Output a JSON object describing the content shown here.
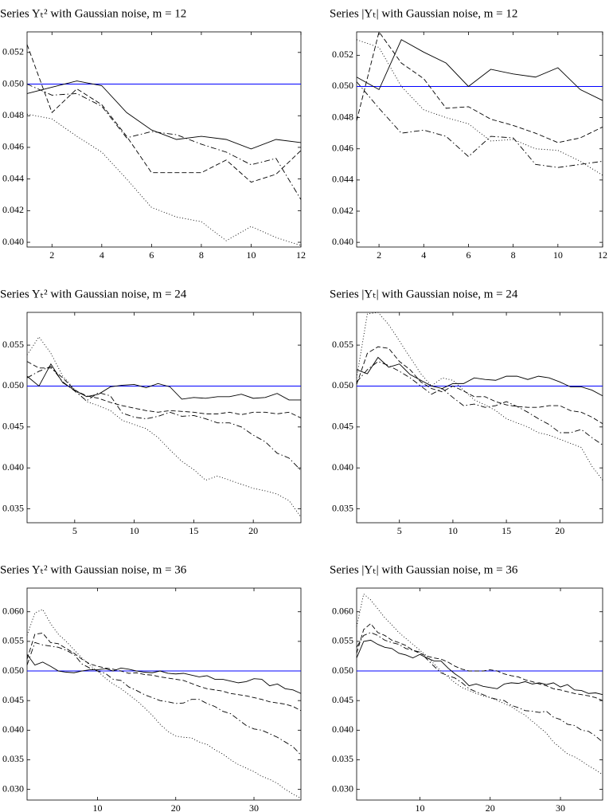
{
  "chart_data": [
    {
      "type": "line",
      "title": "Series Yₜ² with Gaussian noise, m = 12",
      "x": [
        1,
        2,
        3,
        4,
        5,
        6,
        7,
        8,
        9,
        10,
        11,
        12
      ],
      "xlim": [
        1,
        12
      ],
      "xticks": [
        2,
        4,
        6,
        8,
        10,
        12
      ],
      "ylim": [
        0.0397,
        0.0533
      ],
      "yticks": [
        {
          "value": 0.04,
          "label": "0.040"
        },
        0.042,
        0.044,
        0.046,
        0.048,
        {
          "value": 0.05,
          "label": "0.050"
        },
        0.052
      ],
      "grid": false,
      "hline": 0.05,
      "hline_color": "#0000ff",
      "series": [
        {
          "color": "#000000",
          "dash": "solid",
          "values": [
            0.0494,
            0.0498,
            0.0502,
            0.0499,
            0.0482,
            0.0471,
            0.0465,
            0.0467,
            0.0465,
            0.0459,
            0.0465,
            0.0463
          ]
        },
        {
          "color": "#000000",
          "dash": "dashed",
          "values": [
            0.0525,
            0.0482,
            0.0497,
            0.0487,
            0.0467,
            0.0444,
            0.0444,
            0.0444,
            0.0452,
            0.0438,
            0.0443,
            0.0458
          ]
        },
        {
          "color": "#000000",
          "dash": "dashdot",
          "values": [
            0.05,
            0.0493,
            0.0494,
            0.0486,
            0.0466,
            0.047,
            0.0468,
            0.0462,
            0.0457,
            0.0449,
            0.0453,
            0.0427
          ]
        },
        {
          "color": "#000000",
          "dash": "dotted",
          "values": [
            0.0481,
            0.0478,
            0.0467,
            0.0457,
            0.044,
            0.0422,
            0.0416,
            0.0413,
            0.0401,
            0.041,
            0.0403,
            0.0398
          ]
        }
      ]
    },
    {
      "type": "line",
      "title": "Series |Yₜ| with Gaussian noise, m = 12",
      "x": [
        1,
        2,
        3,
        4,
        5,
        6,
        7,
        8,
        9,
        10,
        11,
        12
      ],
      "xlim": [
        1,
        12
      ],
      "xticks": [
        2,
        4,
        6,
        8,
        10,
        12
      ],
      "ylim": [
        0.0397,
        0.0535
      ],
      "yticks": [
        {
          "value": 0.04,
          "label": "0.040"
        },
        0.042,
        0.044,
        0.046,
        0.048,
        {
          "value": 0.05,
          "label": "0.050"
        },
        0.052
      ],
      "grid": false,
      "hline": 0.05,
      "hline_color": "#0000ff",
      "series": [
        {
          "color": "#000000",
          "dash": "solid",
          "values": [
            0.0506,
            0.0498,
            0.053,
            0.0522,
            0.0515,
            0.05,
            0.0511,
            0.0508,
            0.0506,
            0.0512,
            0.0498,
            0.0491
          ]
        },
        {
          "color": "#000000",
          "dash": "dashed",
          "values": [
            0.0478,
            0.0535,
            0.0515,
            0.0505,
            0.0486,
            0.0487,
            0.0479,
            0.0475,
            0.047,
            0.0464,
            0.0467,
            0.0474
          ]
        },
        {
          "color": "#000000",
          "dash": "dashdot",
          "values": [
            0.0503,
            0.0486,
            0.047,
            0.0472,
            0.0468,
            0.0455,
            0.0468,
            0.0467,
            0.045,
            0.0448,
            0.045,
            0.0452
          ]
        },
        {
          "color": "#000000",
          "dash": "dotted",
          "values": [
            0.053,
            0.0525,
            0.05,
            0.0485,
            0.048,
            0.0476,
            0.0465,
            0.0466,
            0.046,
            0.0459,
            0.0452,
            0.0443
          ]
        }
      ]
    },
    {
      "type": "line",
      "title": "Series Yₜ² with Gaussian noise, m = 24",
      "x": [
        1,
        2,
        3,
        4,
        5,
        6,
        7,
        8,
        9,
        10,
        11,
        12,
        13,
        14,
        15,
        16,
        17,
        18,
        19,
        20,
        21,
        22,
        23,
        24
      ],
      "xlim": [
        1,
        24
      ],
      "xticks": [
        5,
        10,
        15,
        20
      ],
      "ylim": [
        0.0333,
        0.059
      ],
      "yticks": [
        0.035,
        {
          "value": 0.04,
          "label": "0.040"
        },
        0.045,
        {
          "value": 0.05,
          "label": "0.050"
        },
        0.055
      ],
      "grid": false,
      "hline": 0.05,
      "hline_color": "#0000ff",
      "series": [
        {
          "color": "#000000",
          "dash": "solid",
          "values": [
            0.0512,
            0.05,
            0.0527,
            0.0504,
            0.0495,
            0.0487,
            0.049,
            0.0499,
            0.0501,
            0.0502,
            0.0498,
            0.0503,
            0.0499,
            0.0484,
            0.0486,
            0.0485,
            0.0487,
            0.0487,
            0.049,
            0.0485,
            0.0486,
            0.0491,
            0.0483,
            0.0483
          ]
        },
        {
          "color": "#000000",
          "dash": "dashed",
          "values": [
            0.053,
            0.0522,
            0.0522,
            0.051,
            0.0495,
            0.0488,
            0.0485,
            0.048,
            0.0476,
            0.0473,
            0.047,
            0.0468,
            0.047,
            0.0469,
            0.0468,
            0.0466,
            0.0466,
            0.0468,
            0.0465,
            0.0468,
            0.0468,
            0.0466,
            0.0468,
            0.0461
          ]
        },
        {
          "color": "#000000",
          "dash": "dashdot",
          "values": [
            0.051,
            0.0518,
            0.0524,
            0.0505,
            0.0494,
            0.0482,
            0.0492,
            0.0488,
            0.0467,
            0.0462,
            0.046,
            0.0463,
            0.0468,
            0.0463,
            0.0464,
            0.046,
            0.0455,
            0.0455,
            0.045,
            0.044,
            0.0432,
            0.0418,
            0.0412,
            0.0397
          ]
        },
        {
          "color": "#000000",
          "dash": "dotted",
          "values": [
            0.0538,
            0.056,
            0.054,
            0.0512,
            0.0496,
            0.0481,
            0.0476,
            0.047,
            0.0458,
            0.0453,
            0.0448,
            0.0437,
            0.0422,
            0.0408,
            0.0398,
            0.0385,
            0.039,
            0.0385,
            0.038,
            0.0375,
            0.0372,
            0.0368,
            0.036,
            0.034
          ]
        }
      ]
    },
    {
      "type": "line",
      "title": "Series |Yₜ| with Gaussian noise, m = 24",
      "x": [
        1,
        2,
        3,
        4,
        5,
        6,
        7,
        8,
        9,
        10,
        11,
        12,
        13,
        14,
        15,
        16,
        17,
        18,
        19,
        20,
        21,
        22,
        23,
        24
      ],
      "xlim": [
        1,
        24
      ],
      "xticks": [
        5,
        10,
        15,
        20
      ],
      "ylim": [
        0.0333,
        0.059
      ],
      "yticks": [
        0.035,
        {
          "value": 0.04,
          "label": "0.040"
        },
        0.045,
        {
          "value": 0.05,
          "label": "0.050"
        },
        0.055
      ],
      "grid": false,
      "hline": 0.05,
      "hline_color": "#0000ff",
      "series": [
        {
          "color": "#000000",
          "dash": "solid",
          "values": [
            0.052,
            0.0515,
            0.0535,
            0.0523,
            0.0527,
            0.0514,
            0.0507,
            0.05,
            0.0497,
            0.0503,
            0.0503,
            0.051,
            0.0508,
            0.0507,
            0.0512,
            0.0512,
            0.0508,
            0.0512,
            0.051,
            0.0505,
            0.0499,
            0.0499,
            0.0495,
            0.0488
          ]
        },
        {
          "color": "#000000",
          "dash": "dashed",
          "values": [
            0.0502,
            0.054,
            0.0548,
            0.0546,
            0.053,
            0.052,
            0.0505,
            0.0497,
            0.0493,
            0.05,
            0.0494,
            0.0487,
            0.0487,
            0.0481,
            0.0477,
            0.0475,
            0.0474,
            0.0474,
            0.0476,
            0.0476,
            0.047,
            0.0468,
            0.0462,
            0.0454
          ]
        },
        {
          "color": "#000000",
          "dash": "dashdot",
          "values": [
            0.0505,
            0.052,
            0.053,
            0.0525,
            0.0518,
            0.051,
            0.05,
            0.049,
            0.0497,
            0.0486,
            0.0476,
            0.0478,
            0.0474,
            0.0476,
            0.0481,
            0.0475,
            0.0468,
            0.046,
            0.0453,
            0.0443,
            0.0443,
            0.0447,
            0.0437,
            0.0428
          ]
        },
        {
          "color": "#000000",
          "dash": "dotted",
          "values": [
            0.051,
            0.0588,
            0.059,
            0.0575,
            0.0555,
            0.0535,
            0.0515,
            0.05,
            0.051,
            0.0507,
            0.0495,
            0.0483,
            0.0477,
            0.047,
            0.046,
            0.0455,
            0.045,
            0.0443,
            0.044,
            0.0435,
            0.043,
            0.0425,
            0.0402,
            0.0385
          ]
        }
      ]
    },
    {
      "type": "line",
      "title": "Series Yₜ² with Gaussian noise, m = 36",
      "x": [
        1,
        2,
        3,
        4,
        5,
        6,
        7,
        8,
        9,
        10,
        11,
        12,
        13,
        14,
        15,
        16,
        17,
        18,
        19,
        20,
        21,
        22,
        23,
        24,
        25,
        26,
        27,
        28,
        29,
        30,
        31,
        32,
        33,
        34,
        35,
        36
      ],
      "xlim": [
        1,
        36
      ],
      "xticks": [
        10,
        20,
        30
      ],
      "ylim": [
        0.0282,
        0.064
      ],
      "yticks": [
        {
          "value": 0.03,
          "label": "0.030"
        },
        0.035,
        {
          "value": 0.04,
          "label": "0.040"
        },
        0.045,
        {
          "value": 0.05,
          "label": "0.050"
        },
        0.055,
        {
          "value": 0.06,
          "label": "0.060"
        }
      ],
      "grid": false,
      "hline": 0.05,
      "hline_color": "#0000ff",
      "series": [
        {
          "color": "#000000",
          "dash": "solid",
          "values": [
            0.0528,
            0.051,
            0.0515,
            0.0508,
            0.05,
            0.0498,
            0.0497,
            0.05,
            0.0502,
            0.0502,
            0.0504,
            0.05,
            0.0505,
            0.0503,
            0.05,
            0.0498,
            0.0497,
            0.05,
            0.0496,
            0.0495,
            0.0496,
            0.0493,
            0.049,
            0.0492,
            0.0486,
            0.0486,
            0.0483,
            0.048,
            0.0482,
            0.0487,
            0.0486,
            0.0475,
            0.0478,
            0.047,
            0.0468,
            0.0462
          ]
        },
        {
          "color": "#000000",
          "dash": "dashed",
          "values": [
            0.052,
            0.0562,
            0.0564,
            0.0548,
            0.0546,
            0.0538,
            0.053,
            0.052,
            0.0512,
            0.0508,
            0.0505,
            0.0503,
            0.05,
            0.0496,
            0.0497,
            0.0494,
            0.0493,
            0.049,
            0.0488,
            0.0486,
            0.0484,
            0.0479,
            0.0474,
            0.047,
            0.0468,
            0.0466,
            0.0462,
            0.046,
            0.0458,
            0.0455,
            0.0452,
            0.0448,
            0.0446,
            0.0444,
            0.044,
            0.0433
          ]
        },
        {
          "color": "#000000",
          "dash": "dashdot",
          "values": [
            0.051,
            0.0548,
            0.0544,
            0.0542,
            0.054,
            0.0535,
            0.0528,
            0.0512,
            0.0505,
            0.05,
            0.0496,
            0.0486,
            0.0484,
            0.0473,
            0.0467,
            0.046,
            0.0455,
            0.045,
            0.0448,
            0.0445,
            0.0446,
            0.0452,
            0.0452,
            0.0445,
            0.044,
            0.0432,
            0.0428,
            0.0418,
            0.0408,
            0.0402,
            0.04,
            0.0394,
            0.0388,
            0.038,
            0.0372,
            0.0358
          ]
        },
        {
          "color": "#000000",
          "dash": "dotted",
          "values": [
            0.056,
            0.0598,
            0.0604,
            0.058,
            0.0562,
            0.055,
            0.0536,
            0.0522,
            0.051,
            0.05,
            0.0488,
            0.0478,
            0.047,
            0.046,
            0.045,
            0.0438,
            0.0425,
            0.041,
            0.0398,
            0.039,
            0.0388,
            0.0387,
            0.038,
            0.0376,
            0.0367,
            0.036,
            0.035,
            0.0342,
            0.0336,
            0.033,
            0.0322,
            0.0317,
            0.031,
            0.03,
            0.0292,
            0.0285
          ]
        }
      ]
    },
    {
      "type": "line",
      "title": "Series |Yₜ| with Gaussian noise, m = 36",
      "x": [
        1,
        2,
        3,
        4,
        5,
        6,
        7,
        8,
        9,
        10,
        11,
        12,
        13,
        14,
        15,
        16,
        17,
        18,
        19,
        20,
        21,
        22,
        23,
        24,
        25,
        26,
        27,
        28,
        29,
        30,
        31,
        32,
        33,
        34,
        35,
        36
      ],
      "xlim": [
        1,
        36
      ],
      "xticks": [
        10,
        20,
        30
      ],
      "ylim": [
        0.0282,
        0.064
      ],
      "yticks": [
        {
          "value": 0.03,
          "label": "0.030"
        },
        0.035,
        {
          "value": 0.04,
          "label": "0.040"
        },
        0.045,
        {
          "value": 0.05,
          "label": "0.050"
        },
        0.055,
        {
          "value": 0.06,
          "label": "0.060"
        }
      ],
      "grid": false,
      "hline": 0.05,
      "hline_color": "#0000ff",
      "series": [
        {
          "color": "#000000",
          "dash": "solid",
          "values": [
            0.0522,
            0.055,
            0.0552,
            0.0545,
            0.054,
            0.0538,
            0.053,
            0.0527,
            0.0522,
            0.0528,
            0.0522,
            0.0517,
            0.0517,
            0.0505,
            0.0495,
            0.0487,
            0.0475,
            0.0478,
            0.0474,
            0.0472,
            0.047,
            0.0478,
            0.048,
            0.0479,
            0.0482,
            0.0478,
            0.048,
            0.0477,
            0.048,
            0.0473,
            0.0477,
            0.0468,
            0.0467,
            0.0462,
            0.0463,
            0.046
          ]
        },
        {
          "color": "#000000",
          "dash": "dashed",
          "values": [
            0.053,
            0.057,
            0.058,
            0.0565,
            0.056,
            0.0552,
            0.0548,
            0.0543,
            0.0535,
            0.053,
            0.0525,
            0.0522,
            0.052,
            0.0515,
            0.0508,
            0.0503,
            0.05,
            0.05,
            0.05,
            0.0502,
            0.05,
            0.0495,
            0.0492,
            0.049,
            0.0485,
            0.0482,
            0.0478,
            0.0475,
            0.047,
            0.0468,
            0.0465,
            0.0462,
            0.046,
            0.0458,
            0.0455,
            0.045
          ]
        },
        {
          "color": "#000000",
          "dash": "dashdot",
          "values": [
            0.054,
            0.056,
            0.0565,
            0.056,
            0.0552,
            0.0548,
            0.0545,
            0.0538,
            0.0535,
            0.0532,
            0.052,
            0.0508,
            0.0497,
            0.0492,
            0.0488,
            0.048,
            0.047,
            0.0465,
            0.046,
            0.0455,
            0.0452,
            0.045,
            0.0442,
            0.0438,
            0.0433,
            0.0432,
            0.043,
            0.0432,
            0.0422,
            0.0418,
            0.041,
            0.0408,
            0.04,
            0.0398,
            0.039,
            0.038
          ]
        },
        {
          "color": "#000000",
          "dash": "dotted",
          "values": [
            0.0575,
            0.063,
            0.062,
            0.0605,
            0.059,
            0.0578,
            0.0565,
            0.0555,
            0.0545,
            0.0535,
            0.0525,
            0.0512,
            0.05,
            0.049,
            0.048,
            0.0472,
            0.0467,
            0.0462,
            0.0458,
            0.0455,
            0.045,
            0.0445,
            0.044,
            0.0432,
            0.0425,
            0.0415,
            0.0405,
            0.0395,
            0.038,
            0.037,
            0.036,
            0.0355,
            0.0348,
            0.034,
            0.0333,
            0.0325
          ]
        }
      ]
    }
  ]
}
